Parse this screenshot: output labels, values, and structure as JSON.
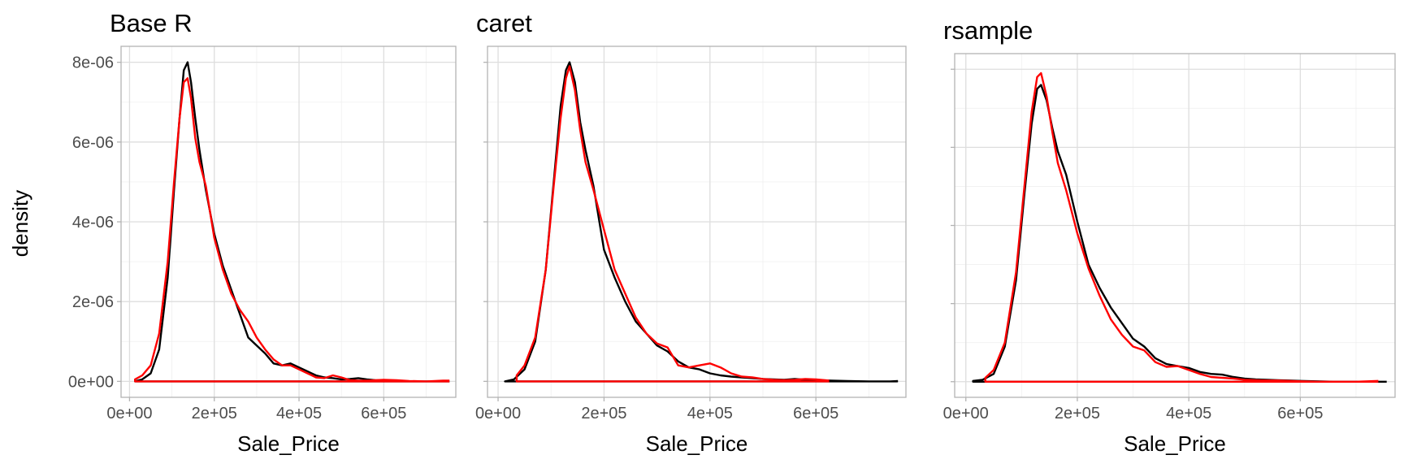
{
  "chart_data": {
    "type": "line",
    "facets": [
      "Base R",
      "caret",
      "rsample"
    ],
    "xlabel": "Sale_Price",
    "ylabel": "density",
    "xlim": [
      -20000,
      770000
    ],
    "ylim": [
      -4e-07,
      8.4e-06
    ],
    "x_ticks": [
      0,
      200000,
      400000,
      600000
    ],
    "x_tick_labels": [
      "0e+00",
      "2e+05",
      "4e+05",
      "6e+05"
    ],
    "y_ticks": [
      0,
      2e-06,
      4e-06,
      6e-06,
      8e-06
    ],
    "y_tick_labels": [
      "0e+00",
      "2e-06",
      "4e-06",
      "6e-06",
      "8e-06"
    ],
    "grid": true,
    "legend": "none",
    "colors": {
      "training": "#000000",
      "test": "#ff0000"
    },
    "panels": [
      {
        "title": "Base R",
        "series": [
          {
            "color": "#000000",
            "x": [
              13000,
              30000,
              50000,
              70000,
              90000,
              105000,
              118000,
              128000,
              137000,
              145000,
              155000,
              165000,
              180000,
              200000,
              220000,
              240000,
              260000,
              280000,
              300000,
              320000,
              340000,
              360000,
              380000,
              400000,
              420000,
              440000,
              460000,
              480000,
              500000,
              520000,
              540000,
              560000,
              580000,
              600000,
              630000,
              660000,
              700000,
              740000,
              755000
            ],
            "y": [
              0,
              5e-08,
              2e-07,
              8e-07,
              2.6e-06,
              4.8e-06,
              6.6e-06,
              7.8e-06,
              8e-06,
              7.5e-06,
              6.6e-06,
              5.8e-06,
              4.8e-06,
              3.7e-06,
              2.9e-06,
              2.3e-06,
              1.7e-06,
              1.1e-06,
              9e-07,
              7e-07,
              4.5e-07,
              4e-07,
              4.5e-07,
              3.5e-07,
              2.5e-07,
              1.5e-07,
              1e-07,
              8e-08,
              5e-08,
              6e-08,
              8e-08,
              5e-08,
              3e-08,
              2e-08,
              1e-08,
              0,
              0,
              0,
              0
            ]
          },
          {
            "color": "#ff0000",
            "x": [
              13000,
              30000,
              50000,
              70000,
              90000,
              105000,
              118000,
              128000,
              137000,
              145000,
              155000,
              165000,
              180000,
              200000,
              220000,
              240000,
              260000,
              280000,
              300000,
              320000,
              340000,
              360000,
              380000,
              400000,
              420000,
              440000,
              460000,
              480000,
              500000,
              520000,
              540000,
              560000,
              580000,
              600000,
              630000,
              660000,
              700000,
              740000,
              755000
            ],
            "y": [
              5e-08,
              1.5e-07,
              4e-07,
              1.2e-06,
              3e-06,
              5e-06,
              6.6e-06,
              7.5e-06,
              7.6e-06,
              7.1e-06,
              6.1e-06,
              5.5e-06,
              4.9e-06,
              3.6e-06,
              2.8e-06,
              2.2e-06,
              1.8e-06,
              1.5e-06,
              1.1e-06,
              8e-07,
              5.5e-07,
              4e-07,
              4e-07,
              3e-07,
              2e-07,
              1e-07,
              8e-08,
              1.5e-07,
              1e-07,
              3e-08,
              2e-08,
              2e-08,
              3e-08,
              4e-08,
              3e-08,
              1e-08,
              0,
              2e-08,
              2e-08
            ]
          }
        ]
      },
      {
        "title": "caret",
        "series": [
          {
            "color": "#000000",
            "x": [
              13000,
              30000,
              50000,
              70000,
              90000,
              105000,
              118000,
              128000,
              135000,
              145000,
              155000,
              165000,
              180000,
              200000,
              220000,
              240000,
              260000,
              280000,
              300000,
              320000,
              340000,
              360000,
              380000,
              400000,
              420000,
              440000,
              460000,
              480000,
              500000,
              520000,
              540000,
              560000,
              580000,
              600000,
              630000,
              660000,
              700000,
              740000,
              755000
            ],
            "y": [
              0,
              5e-08,
              3e-07,
              1e-06,
              2.8e-06,
              5e-06,
              6.9e-06,
              7.8e-06,
              8e-06,
              7.5e-06,
              6.5e-06,
              5.8e-06,
              4.9e-06,
              3.3e-06,
              2.6e-06,
              2e-06,
              1.5e-06,
              1.2e-06,
              9e-07,
              7.5e-07,
              5e-07,
              3.5e-07,
              3e-07,
              2e-07,
              1.5e-07,
              1.2e-07,
              1e-07,
              8e-08,
              6e-08,
              5e-08,
              4e-08,
              6e-08,
              4e-08,
              3e-08,
              2e-08,
              1e-08,
              0,
              0,
              1e-08
            ]
          },
          {
            "color": "#ff0000",
            "x": [
              35000,
              50000,
              70000,
              90000,
              105000,
              118000,
              128000,
              135000,
              145000,
              155000,
              165000,
              180000,
              200000,
              220000,
              240000,
              260000,
              280000,
              300000,
              320000,
              340000,
              360000,
              380000,
              400000,
              420000,
              440000,
              460000,
              480000,
              500000,
              520000,
              540000,
              560000,
              580000,
              600000,
              625000
            ],
            "y": [
              1.5e-07,
              4e-07,
              1.1e-06,
              2.8e-06,
              4.9e-06,
              6.6e-06,
              7.6e-06,
              7.9e-06,
              7.3e-06,
              6.3e-06,
              5.5e-06,
              4.8e-06,
              3.8e-06,
              2.8e-06,
              2.2e-06,
              1.6e-06,
              1.2e-06,
              9.5e-07,
              8.5e-07,
              4e-07,
              3.5e-07,
              4e-07,
              4.5e-07,
              3.5e-07,
              2e-07,
              1.2e-07,
              1e-07,
              6e-08,
              4e-08,
              3e-08,
              4e-08,
              6e-08,
              5e-08,
              2e-08
            ]
          }
        ]
      },
      {
        "title": "rsample",
        "series": [
          {
            "color": "#000000",
            "x": [
              13000,
              30000,
              50000,
              70000,
              90000,
              105000,
              118000,
              128000,
              135000,
              145000,
              155000,
              165000,
              180000,
              200000,
              220000,
              240000,
              260000,
              280000,
              300000,
              320000,
              340000,
              360000,
              380000,
              400000,
              420000,
              440000,
              460000,
              480000,
              500000,
              520000,
              540000,
              560000,
              580000,
              600000,
              630000,
              660000,
              700000,
              740000,
              755000
            ],
            "y": [
              2e-08,
              5e-08,
              2e-07,
              9e-07,
              2.6e-06,
              4.8e-06,
              6.6e-06,
              7.5e-06,
              7.6e-06,
              7.2e-06,
              6.5e-06,
              5.9e-06,
              5.3e-06,
              4.1e-06,
              3e-06,
              2.4e-06,
              1.9e-06,
              1.5e-06,
              1.1e-06,
              9e-07,
              6e-07,
              4.5e-07,
              4e-07,
              3.5e-07,
              2.5e-07,
              2e-07,
              1.8e-07,
              1.2e-07,
              8e-08,
              6e-08,
              5e-08,
              4e-08,
              3e-08,
              2e-08,
              1e-08,
              0,
              0,
              0,
              0
            ]
          },
          {
            "color": "#ff0000",
            "x": [
              35000,
              50000,
              70000,
              90000,
              105000,
              118000,
              128000,
              135000,
              145000,
              155000,
              165000,
              180000,
              200000,
              220000,
              240000,
              260000,
              280000,
              300000,
              320000,
              340000,
              360000,
              380000,
              400000,
              420000,
              440000,
              460000,
              480000,
              500000,
              520000,
              540000,
              560000,
              580000,
              600000,
              630000,
              660000,
              700000,
              740000
            ],
            "y": [
              1e-07,
              3e-07,
              1e-06,
              2.8e-06,
              5e-06,
              6.9e-06,
              7.8e-06,
              7.9e-06,
              7.3e-06,
              6.4e-06,
              5.6e-06,
              4.9e-06,
              3.8e-06,
              2.9e-06,
              2.2e-06,
              1.6e-06,
              1.2e-06,
              9e-07,
              8e-07,
              5e-07,
              3.8e-07,
              4e-07,
              3e-07,
              2e-07,
              1.2e-07,
              1e-07,
              8e-08,
              5e-08,
              4e-08,
              3e-08,
              3e-08,
              2e-08,
              1e-08,
              0,
              0,
              0,
              2e-08
            ]
          }
        ]
      }
    ]
  }
}
